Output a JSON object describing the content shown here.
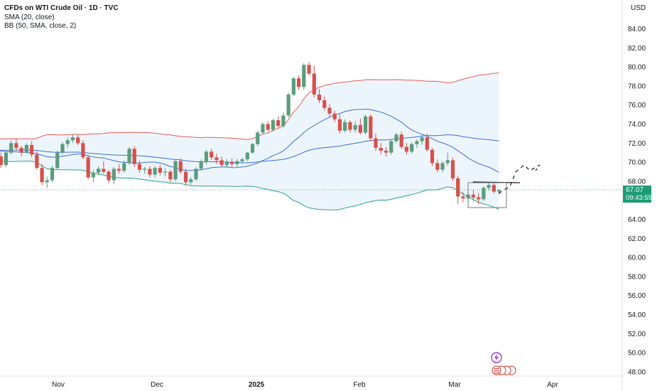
{
  "header": {
    "title": "CFDs on WTI Crude Oil · 1D · TVC",
    "indicator_1": "SMA (20, close)",
    "indicator_2": "BB (50, SMA, close, 2)",
    "currency": "USD"
  },
  "last_price": {
    "value": "67.07",
    "countdown": "09:43:55",
    "color": "#1d9c75"
  },
  "colors": {
    "up": "#5b9c7c",
    "down": "#d8504a",
    "bb_upper": "#e85a5a",
    "bb_lower": "#2aa08a",
    "bb_basis": "#3a6fd8",
    "sma": "#3a6fd8",
    "bb_fill": "#e8f2fb"
  },
  "chart_data": {
    "type": "candlestick",
    "y_axis": {
      "ticks": [
        "84.00",
        "82.00",
        "80.00",
        "78.00",
        "76.00",
        "74.00",
        "72.00",
        "70.00",
        "68.00",
        "66.00",
        "64.00",
        "62.00",
        "60.00",
        "58.00",
        "56.00",
        "54.00",
        "52.00",
        "50.00",
        "48.00"
      ],
      "ylim": [
        47.5,
        85
      ]
    },
    "x_axis": {
      "ticks": [
        "Nov",
        "Dec",
        "2025",
        "Feb",
        "Mar",
        "Apr"
      ]
    },
    "candles": [
      [
        71.2,
        71.6,
        70.2,
        70.6
      ],
      [
        70.6,
        71.0,
        69.4,
        69.7
      ],
      [
        69.7,
        71.2,
        69.5,
        71.0
      ],
      [
        71.0,
        72.3,
        70.8,
        72.0
      ],
      [
        72.0,
        72.5,
        71.2,
        71.5
      ],
      [
        71.5,
        71.7,
        70.6,
        71.0
      ],
      [
        71.0,
        72.0,
        70.9,
        71.8
      ],
      [
        71.8,
        72.2,
        70.5,
        70.8
      ],
      [
        70.8,
        71.1,
        69.2,
        69.4
      ],
      [
        69.4,
        69.8,
        67.6,
        67.9
      ],
      [
        67.9,
        68.5,
        67.3,
        68.1
      ],
      [
        68.1,
        69.6,
        67.9,
        69.4
      ],
      [
        69.4,
        71.2,
        69.2,
        71.0
      ],
      [
        71.0,
        72.1,
        70.8,
        71.9
      ],
      [
        71.9,
        72.6,
        71.5,
        72.3
      ],
      [
        72.3,
        72.9,
        72.0,
        72.6
      ],
      [
        72.6,
        72.9,
        71.8,
        72.0
      ],
      [
        72.0,
        72.3,
        70.3,
        70.5
      ],
      [
        70.5,
        70.7,
        68.2,
        68.4
      ],
      [
        68.4,
        69.2,
        67.9,
        68.9
      ],
      [
        68.9,
        69.6,
        68.6,
        69.3
      ],
      [
        69.3,
        70.1,
        68.8,
        69.0
      ],
      [
        69.0,
        69.2,
        67.8,
        68.1
      ],
      [
        68.1,
        69.5,
        67.7,
        69.3
      ],
      [
        69.3,
        69.8,
        68.8,
        69.1
      ],
      [
        69.1,
        70.2,
        68.9,
        69.9
      ],
      [
        69.9,
        71.6,
        69.7,
        71.4
      ],
      [
        71.4,
        71.7,
        69.5,
        69.8
      ],
      [
        69.8,
        70.2,
        68.9,
        69.2
      ],
      [
        69.2,
        69.5,
        68.8,
        69.3
      ],
      [
        69.3,
        69.6,
        68.4,
        68.7
      ],
      [
        68.7,
        69.6,
        68.4,
        69.4
      ],
      [
        69.4,
        69.7,
        68.6,
        68.9
      ],
      [
        68.9,
        69.4,
        68.5,
        69.0
      ],
      [
        69.0,
        69.2,
        67.9,
        68.2
      ],
      [
        68.2,
        70.3,
        68.0,
        70.1
      ],
      [
        70.1,
        70.4,
        68.8,
        69.0
      ],
      [
        69.0,
        69.3,
        67.6,
        67.9
      ],
      [
        67.9,
        68.4,
        67.6,
        68.2
      ],
      [
        68.2,
        69.5,
        68.0,
        69.3
      ],
      [
        69.3,
        70.3,
        69.1,
        70.1
      ],
      [
        70.1,
        71.3,
        69.8,
        71.1
      ],
      [
        71.1,
        71.4,
        70.2,
        70.5
      ],
      [
        70.5,
        70.9,
        69.8,
        70.2
      ],
      [
        70.2,
        70.6,
        69.5,
        69.7
      ],
      [
        69.7,
        70.3,
        69.4,
        70.0
      ],
      [
        70.0,
        70.4,
        69.5,
        69.8
      ],
      [
        69.8,
        70.3,
        69.4,
        70.1
      ],
      [
        70.1,
        70.5,
        69.8,
        70.3
      ],
      [
        70.3,
        71.1,
        70.1,
        71.0
      ],
      [
        71.0,
        72.0,
        70.9,
        71.9
      ],
      [
        71.9,
        73.3,
        71.7,
        73.1
      ],
      [
        73.1,
        74.2,
        72.9,
        74.0
      ],
      [
        74.0,
        74.3,
        73.2,
        73.4
      ],
      [
        73.4,
        74.6,
        73.2,
        74.4
      ],
      [
        74.4,
        74.8,
        73.6,
        73.8
      ],
      [
        73.8,
        75.2,
        73.6,
        74.9
      ],
      [
        74.9,
        77.3,
        74.7,
        77.1
      ],
      [
        77.1,
        78.9,
        76.9,
        78.8
      ],
      [
        78.8,
        79.1,
        77.6,
        77.9
      ],
      [
        77.9,
        80.4,
        77.6,
        80.2
      ],
      [
        80.2,
        80.5,
        79.1,
        79.3
      ],
      [
        79.3,
        80.1,
        76.8,
        77.1
      ],
      [
        77.1,
        77.7,
        76.2,
        76.5
      ],
      [
        76.5,
        76.9,
        75.4,
        75.7
      ],
      [
        75.7,
        76.1,
        74.7,
        75.1
      ],
      [
        75.1,
        75.4,
        74.2,
        74.5
      ],
      [
        74.5,
        75.0,
        73.0,
        73.3
      ],
      [
        73.3,
        74.5,
        73.1,
        74.2
      ],
      [
        74.2,
        74.4,
        73.1,
        73.4
      ],
      [
        73.4,
        74.3,
        73.1,
        73.9
      ],
      [
        73.9,
        74.6,
        72.9,
        73.1
      ],
      [
        73.1,
        75.0,
        72.9,
        74.8
      ],
      [
        74.8,
        75.0,
        72.2,
        72.5
      ],
      [
        72.5,
        73.0,
        71.2,
        71.5
      ],
      [
        71.5,
        72.0,
        70.8,
        71.2
      ],
      [
        71.2,
        71.6,
        70.6,
        71.0
      ],
      [
        71.0,
        72.4,
        70.8,
        72.2
      ],
      [
        72.2,
        73.1,
        72.0,
        72.9
      ],
      [
        72.9,
        73.2,
        71.4,
        71.6
      ],
      [
        71.6,
        72.0,
        70.8,
        71.1
      ],
      [
        71.1,
        72.1,
        70.9,
        71.9
      ],
      [
        71.9,
        72.4,
        71.5,
        72.2
      ],
      [
        72.2,
        72.9,
        71.8,
        72.6
      ],
      [
        72.6,
        73.0,
        71.1,
        71.3
      ],
      [
        71.3,
        71.5,
        69.6,
        69.9
      ],
      [
        69.9,
        70.3,
        68.9,
        69.2
      ],
      [
        69.2,
        70.1,
        68.9,
        69.9
      ],
      [
        69.9,
        71.0,
        69.6,
        70.2
      ],
      [
        70.2,
        70.5,
        68.0,
        68.3
      ],
      [
        68.3,
        68.6,
        65.6,
        66.4
      ],
      [
        66.4,
        66.9,
        65.8,
        66.2
      ],
      [
        66.2,
        66.9,
        65.7,
        66.6
      ],
      [
        66.6,
        67.1,
        65.9,
        66.3
      ],
      [
        66.3,
        66.8,
        65.6,
        66.1
      ],
      [
        66.1,
        67.5,
        65.9,
        67.3
      ],
      [
        67.3,
        67.9,
        67.0,
        67.6
      ],
      [
        67.6,
        67.8,
        66.7,
        66.9
      ],
      [
        66.9,
        67.2,
        66.6,
        67.07
      ]
    ],
    "bb_upper_last": 79.0,
    "bb_lower_last": 65.1,
    "sma20_last": 68.9,
    "bb_basis_last": 72.1,
    "x_count": 99
  }
}
